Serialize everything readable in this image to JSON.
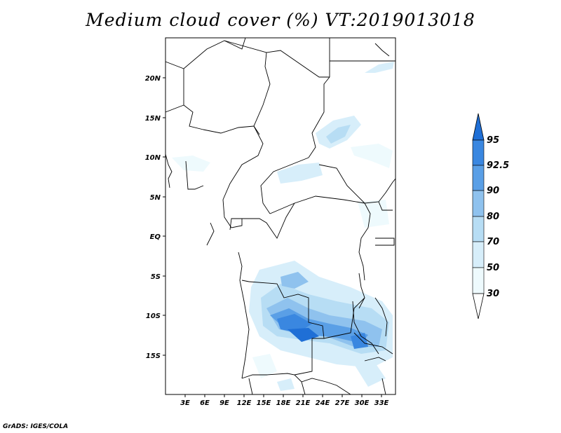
{
  "title": "Medium cloud cover (%) VT:2019013018",
  "credit": "GrADS: IGES/COLA",
  "axes": {
    "lon_ticks": [
      "3E",
      "6E",
      "9E",
      "12E",
      "15E",
      "18E",
      "21E",
      "24E",
      "27E",
      "30E",
      "33E"
    ],
    "lat_ticks": [
      "20N",
      "15N",
      "10N",
      "5N",
      "EQ",
      "5S",
      "10S",
      "15S"
    ]
  },
  "colorbar": {
    "levels": [
      "95",
      "92.5",
      "90",
      "80",
      "70",
      "50",
      "30"
    ],
    "colors": [
      "#1f6fd6",
      "#3a87e0",
      "#5a9fe6",
      "#8fc2ee",
      "#b7ddf4",
      "#d7eefa",
      "#eefafd"
    ]
  },
  "chart_data": {
    "type": "heatmap",
    "title": "Medium cloud cover (%) VT:2019013018",
    "x_range": [
      0,
      35
    ],
    "y_range": [
      -20,
      25
    ],
    "levels": [
      30,
      50,
      70,
      80,
      90,
      92.5,
      95
    ]
  }
}
